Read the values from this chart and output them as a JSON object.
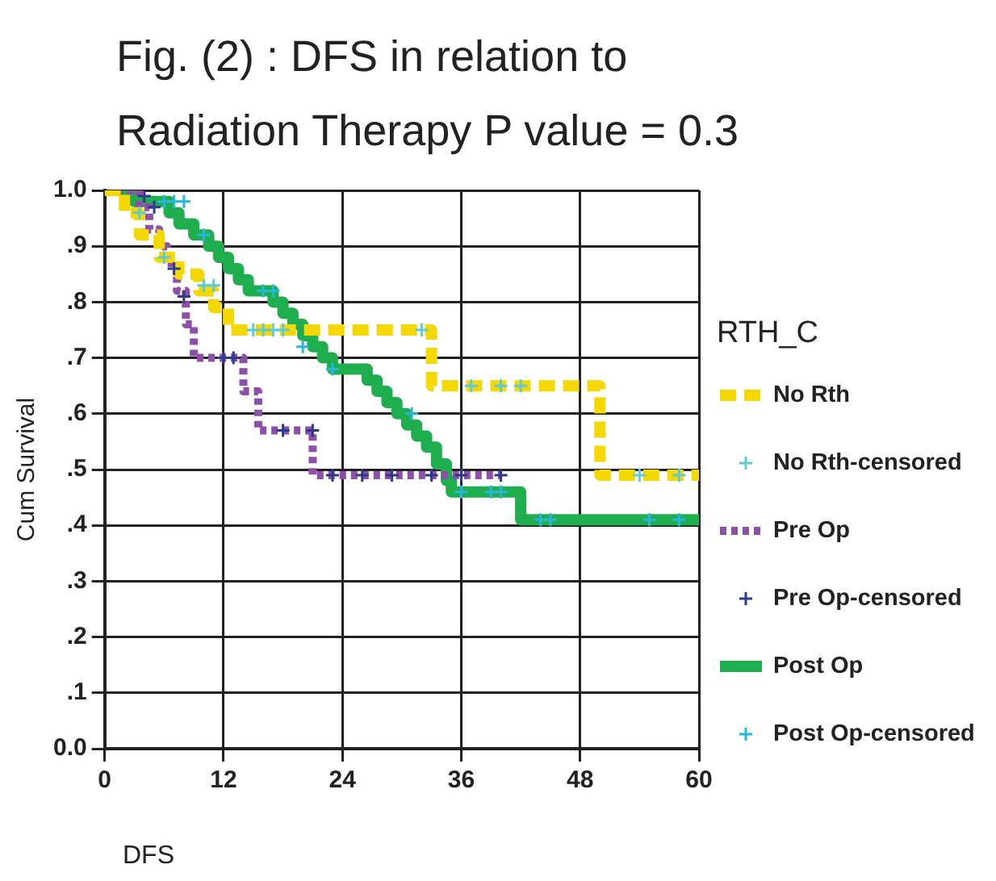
{
  "chart_data": {
    "type": "step",
    "title": "Fig. (2) : DFS in relation to Radiation Therapy P value = 0.3",
    "xlabel": "DFS",
    "ylabel": "Cum Survival",
    "legend_title": "RTH_C",
    "xlim": [
      0,
      60
    ],
    "xticks": [
      0,
      12,
      24,
      36,
      48,
      60
    ],
    "ylim": [
      0,
      1
    ],
    "yticks": [
      {
        "value": 0,
        "label": "0.0"
      },
      {
        "value": 0.1,
        "label": ".1"
      },
      {
        "value": 0.2,
        "label": ".2"
      },
      {
        "value": 0.3,
        "label": ".3"
      },
      {
        "value": 0.4,
        "label": ".4"
      },
      {
        "value": 0.5,
        "label": ".5"
      },
      {
        "value": 0.6,
        "label": ".6"
      },
      {
        "value": 0.7,
        "label": ".7"
      },
      {
        "value": 0.8,
        "label": ".8"
      },
      {
        "value": 0.9,
        "label": ".9"
      },
      {
        "value": 1,
        "label": "1.0"
      }
    ],
    "grid": true,
    "legend": "right",
    "series": [
      {
        "name": "No Rth",
        "color": "#f5d800",
        "line_style": "dashed",
        "marker": "none",
        "x": [
          0,
          2,
          3.5,
          5.5,
          7.5,
          9.5,
          11,
          12.5,
          33,
          50,
          60
        ],
        "values": [
          1,
          0.96,
          0.92,
          0.88,
          0.85,
          0.82,
          0.79,
          0.75,
          0.65,
          0.49,
          0.49
        ]
      },
      {
        "name": "No Rth-censored",
        "type": "scatter",
        "color": "#5ccbd6",
        "marker": "cross",
        "x": [
          3.5,
          6,
          10,
          11,
          15,
          16,
          17,
          18,
          32,
          37,
          40,
          42,
          54,
          58
        ],
        "values": [
          0.96,
          0.88,
          0.83,
          0.83,
          0.75,
          0.75,
          0.75,
          0.75,
          0.75,
          0.65,
          0.65,
          0.65,
          0.49,
          0.49
        ]
      },
      {
        "name": "Pre Op",
        "color": "#8e4fa8",
        "line_style": "dotted",
        "marker": "none",
        "x": [
          0,
          3.5,
          4.5,
          5.5,
          6.3,
          7.3,
          8.2,
          9,
          14,
          15.5,
          21,
          40
        ],
        "values": [
          1,
          0.97,
          0.93,
          0.9,
          0.87,
          0.82,
          0.76,
          0.7,
          0.64,
          0.57,
          0.49,
          0.49
        ]
      },
      {
        "name": "Pre Op-censored",
        "type": "scatter",
        "color": "#2b3a8f",
        "marker": "cross",
        "x": [
          4,
          5,
          7,
          8,
          12,
          13,
          18,
          21,
          23,
          26,
          29,
          33,
          36,
          40
        ],
        "values": [
          0.99,
          0.97,
          0.86,
          0.81,
          0.7,
          0.7,
          0.57,
          0.57,
          0.49,
          0.49,
          0.49,
          0.49,
          0.49,
          0.49
        ]
      },
      {
        "name": "Post Op",
        "color": "#1fae4e",
        "line_style": "solid",
        "marker": "none",
        "x": [
          0,
          3,
          6.5,
          7.5,
          9,
          10.5,
          11.5,
          12.5,
          13.5,
          14.5,
          17,
          18,
          19,
          20,
          21,
          22,
          23,
          26.5,
          27.5,
          28.5,
          29.5,
          30.5,
          31.5,
          32.5,
          33.5,
          34.5,
          35,
          42,
          60
        ],
        "values": [
          1,
          0.98,
          0.96,
          0.94,
          0.92,
          0.9,
          0.88,
          0.86,
          0.84,
          0.82,
          0.8,
          0.78,
          0.76,
          0.74,
          0.72,
          0.7,
          0.68,
          0.66,
          0.64,
          0.62,
          0.6,
          0.58,
          0.56,
          0.54,
          0.51,
          0.48,
          0.46,
          0.41,
          0.41
        ]
      },
      {
        "name": "Post Op-censored",
        "type": "scatter",
        "color": "#27b6dc",
        "marker": "cross",
        "x": [
          6,
          7,
          8,
          10,
          16,
          17,
          20,
          23,
          31,
          36,
          39,
          40,
          44,
          45,
          55,
          58
        ],
        "values": [
          0.98,
          0.98,
          0.98,
          0.92,
          0.82,
          0.82,
          0.72,
          0.68,
          0.6,
          0.46,
          0.46,
          0.46,
          0.41,
          0.41,
          0.41,
          0.41
        ]
      }
    ]
  }
}
